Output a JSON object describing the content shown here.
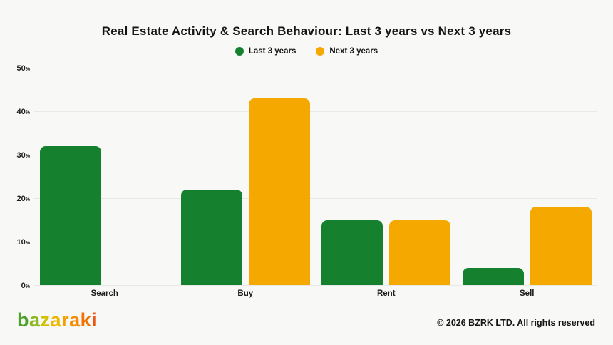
{
  "title": "Real Estate Activity & Search Behaviour: Last 3 years vs Next 3 years",
  "legend": [
    {
      "label": "Last 3 years",
      "color": "#15812E"
    },
    {
      "label": "Next 3 years",
      "color": "#F5A800"
    }
  ],
  "chart_data": {
    "type": "bar",
    "title": "Real Estate Activity & Search Behaviour: Last 3 years vs Next 3 years",
    "categories": [
      "Search",
      "Buy",
      "Rent",
      "Sell"
    ],
    "series": [
      {
        "name": "Last 3 years",
        "color": "#15812E",
        "values": [
          32,
          22,
          15,
          4
        ]
      },
      {
        "name": "Next 3 years",
        "color": "#F5A800",
        "values": [
          0,
          43,
          15,
          18
        ]
      }
    ],
    "xlabel": "",
    "ylabel": "",
    "yticks": [
      0,
      10,
      20,
      30,
      40,
      50
    ],
    "ytick_suffix": "%",
    "ylim": [
      0,
      50
    ],
    "grid": true,
    "legend_position": "top"
  },
  "footer": {
    "logo": {
      "text": "bazaraki",
      "letters": [
        {
          "char": "b",
          "color": "#4FA12B"
        },
        {
          "char": "a",
          "color": "#8CB71F"
        },
        {
          "char": "z",
          "color": "#D2C000"
        },
        {
          "char": "a",
          "color": "#EFB600"
        },
        {
          "char": "r",
          "color": "#F59E00"
        },
        {
          "char": "a",
          "color": "#F58A00"
        },
        {
          "char": "k",
          "color": "#F07300"
        },
        {
          "char": "i",
          "color": "#EB5715"
        }
      ]
    },
    "copyright": "© 2026 BZRK LTD. All rights reserved"
  },
  "colors": {
    "background": "#F8F8F6",
    "grid": "#E8E8E8",
    "text": "#141414"
  }
}
